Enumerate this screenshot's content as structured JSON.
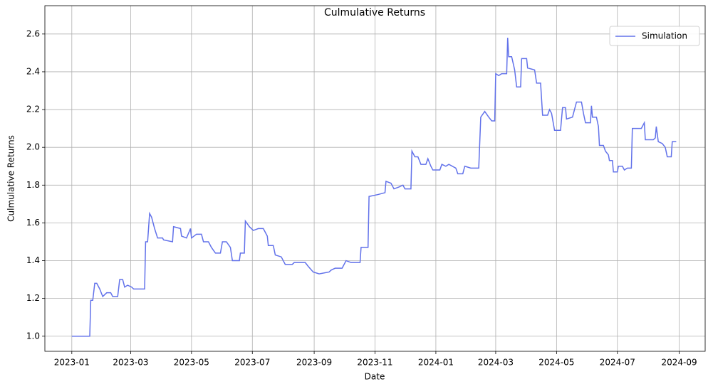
{
  "chart_data": {
    "type": "line",
    "title": "Culmulative Returns",
    "xlabel": "Date",
    "ylabel": "Culmulative Returns",
    "x": [
      "2023-01-01",
      "2023-01-06",
      "2023-01-19",
      "2023-01-20",
      "2023-01-22",
      "2023-01-24",
      "2023-01-26",
      "2023-01-29",
      "2023-02-01",
      "2023-02-05",
      "2023-02-09",
      "2023-02-11",
      "2023-02-16",
      "2023-02-18",
      "2023-02-21",
      "2023-02-23",
      "2023-02-26",
      "2023-03-02",
      "2023-03-04",
      "2023-03-15",
      "2023-03-16",
      "2023-03-18",
      "2023-03-20",
      "2023-03-22",
      "2023-03-25",
      "2023-03-28",
      "2023-04-02",
      "2023-04-03",
      "2023-04-12",
      "2023-04-13",
      "2023-04-20",
      "2023-04-21",
      "2023-04-26",
      "2023-04-30",
      "2023-05-01",
      "2023-05-06",
      "2023-05-11",
      "2023-05-13",
      "2023-05-18",
      "2023-05-21",
      "2023-05-25",
      "2023-05-30",
      "2023-06-01",
      "2023-06-05",
      "2023-06-09",
      "2023-06-11",
      "2023-06-18",
      "2023-06-19",
      "2023-06-23",
      "2023-06-24",
      "2023-06-28",
      "2023-07-02",
      "2023-07-07",
      "2023-07-12",
      "2023-07-16",
      "2023-07-17",
      "2023-07-22",
      "2023-07-24",
      "2023-07-30",
      "2023-08-03",
      "2023-08-10",
      "2023-08-12",
      "2023-08-23",
      "2023-08-26",
      "2023-08-31",
      "2023-09-06",
      "2023-09-16",
      "2023-09-18",
      "2023-09-22",
      "2023-09-29",
      "2023-10-03",
      "2023-10-08",
      "2023-10-17",
      "2023-10-18",
      "2023-10-25",
      "2023-10-26",
      "2023-11-04",
      "2023-11-11",
      "2023-11-12",
      "2023-11-17",
      "2023-11-20",
      "2023-11-25",
      "2023-11-29",
      "2023-12-01",
      "2023-12-07",
      "2023-12-08",
      "2023-12-11",
      "2023-12-14",
      "2023-12-17",
      "2023-12-22",
      "2023-12-24",
      "2023-12-27",
      "2023-12-29",
      "2024-01-05",
      "2024-01-07",
      "2024-01-11",
      "2024-01-14",
      "2024-01-21",
      "2024-01-23",
      "2024-01-28",
      "2024-01-30",
      "2024-02-05",
      "2024-02-13",
      "2024-02-15",
      "2024-02-19",
      "2024-02-23",
      "2024-02-26",
      "2024-02-29",
      "2024-03-01",
      "2024-03-04",
      "2024-03-07",
      "2024-03-12",
      "2024-03-13",
      "2024-03-14",
      "2024-03-17",
      "2024-03-20",
      "2024-03-22",
      "2024-03-26",
      "2024-03-27",
      "2024-04-01",
      "2024-04-02",
      "2024-04-09",
      "2024-04-11",
      "2024-04-15",
      "2024-04-17",
      "2024-04-22",
      "2024-04-24",
      "2024-04-26",
      "2024-04-29",
      "2024-05-05",
      "2024-05-07",
      "2024-05-10",
      "2024-05-11",
      "2024-05-17",
      "2024-05-19",
      "2024-05-21",
      "2024-05-26",
      "2024-05-28",
      "2024-05-30",
      "2024-06-04",
      "2024-06-05",
      "2024-06-06",
      "2024-06-10",
      "2024-06-12",
      "2024-06-13",
      "2024-06-17",
      "2024-06-19",
      "2024-06-22",
      "2024-06-23",
      "2024-06-26",
      "2024-06-27",
      "2024-07-01",
      "2024-07-02",
      "2024-07-06",
      "2024-07-08",
      "2024-07-11",
      "2024-07-15",
      "2024-07-16",
      "2024-07-22",
      "2024-07-25",
      "2024-07-28",
      "2024-07-29",
      "2024-08-06",
      "2024-08-08",
      "2024-08-09",
      "2024-08-11",
      "2024-08-15",
      "2024-08-18",
      "2024-08-20",
      "2024-08-24",
      "2024-08-25",
      "2024-08-29"
    ],
    "series": [
      {
        "name": "Simulation",
        "color": "#6272ea",
        "values": [
          1.0,
          1.0,
          1.0,
          1.19,
          1.19,
          1.28,
          1.28,
          1.25,
          1.21,
          1.23,
          1.23,
          1.21,
          1.21,
          1.3,
          1.3,
          1.26,
          1.27,
          1.26,
          1.25,
          1.25,
          1.5,
          1.5,
          1.65,
          1.63,
          1.57,
          1.52,
          1.52,
          1.51,
          1.5,
          1.58,
          1.57,
          1.53,
          1.52,
          1.57,
          1.52,
          1.54,
          1.54,
          1.5,
          1.5,
          1.47,
          1.44,
          1.44,
          1.5,
          1.5,
          1.47,
          1.4,
          1.4,
          1.44,
          1.44,
          1.61,
          1.58,
          1.56,
          1.57,
          1.57,
          1.53,
          1.48,
          1.48,
          1.43,
          1.42,
          1.38,
          1.38,
          1.39,
          1.39,
          1.37,
          1.34,
          1.33,
          1.34,
          1.35,
          1.36,
          1.36,
          1.4,
          1.39,
          1.39,
          1.47,
          1.47,
          1.74,
          1.75,
          1.76,
          1.82,
          1.81,
          1.78,
          1.79,
          1.8,
          1.78,
          1.78,
          1.98,
          1.95,
          1.95,
          1.91,
          1.91,
          1.94,
          1.9,
          1.88,
          1.88,
          1.91,
          1.9,
          1.91,
          1.89,
          1.86,
          1.86,
          1.9,
          1.89,
          1.89,
          2.16,
          2.19,
          2.16,
          2.14,
          2.14,
          2.39,
          2.38,
          2.39,
          2.39,
          2.58,
          2.48,
          2.48,
          2.41,
          2.32,
          2.32,
          2.47,
          2.47,
          2.42,
          2.41,
          2.34,
          2.34,
          2.17,
          2.17,
          2.2,
          2.18,
          2.09,
          2.09,
          2.21,
          2.21,
          2.15,
          2.16,
          2.2,
          2.24,
          2.24,
          2.18,
          2.13,
          2.13,
          2.22,
          2.16,
          2.16,
          2.11,
          2.01,
          2.01,
          1.98,
          1.96,
          1.93,
          1.93,
          1.87,
          1.87,
          1.9,
          1.9,
          1.88,
          1.89,
          1.89,
          2.1,
          2.1,
          2.1,
          2.13,
          2.04,
          2.04,
          2.05,
          2.11,
          2.03,
          2.02,
          2.0,
          1.95,
          1.95,
          2.03,
          2.03
        ]
      }
    ],
    "xlim": [
      "2022-12-05",
      "2024-09-27"
    ],
    "xticks": [
      {
        "value": "2023-01-01",
        "label": "2023-01"
      },
      {
        "value": "2023-03-01",
        "label": "2023-03"
      },
      {
        "value": "2023-05-01",
        "label": "2023-05"
      },
      {
        "value": "2023-07-01",
        "label": "2023-07"
      },
      {
        "value": "2023-09-01",
        "label": "2023-09"
      },
      {
        "value": "2023-11-01",
        "label": "2023-11"
      },
      {
        "value": "2024-01-01",
        "label": "2024-01"
      },
      {
        "value": "2024-03-01",
        "label": "2024-03"
      },
      {
        "value": "2024-05-01",
        "label": "2024-05"
      },
      {
        "value": "2024-07-01",
        "label": "2024-07"
      },
      {
        "value": "2024-09-01",
        "label": "2024-09"
      }
    ],
    "ylim": [
      0.92,
      2.75
    ],
    "yticks": [
      {
        "value": 1,
        "label": "1.0"
      },
      1.2,
      1.4,
      1.6,
      1.8,
      {
        "value": 2,
        "label": "2.0"
      },
      2.2,
      2.4,
      2.6
    ],
    "grid": true,
    "legend": "upper right"
  }
}
